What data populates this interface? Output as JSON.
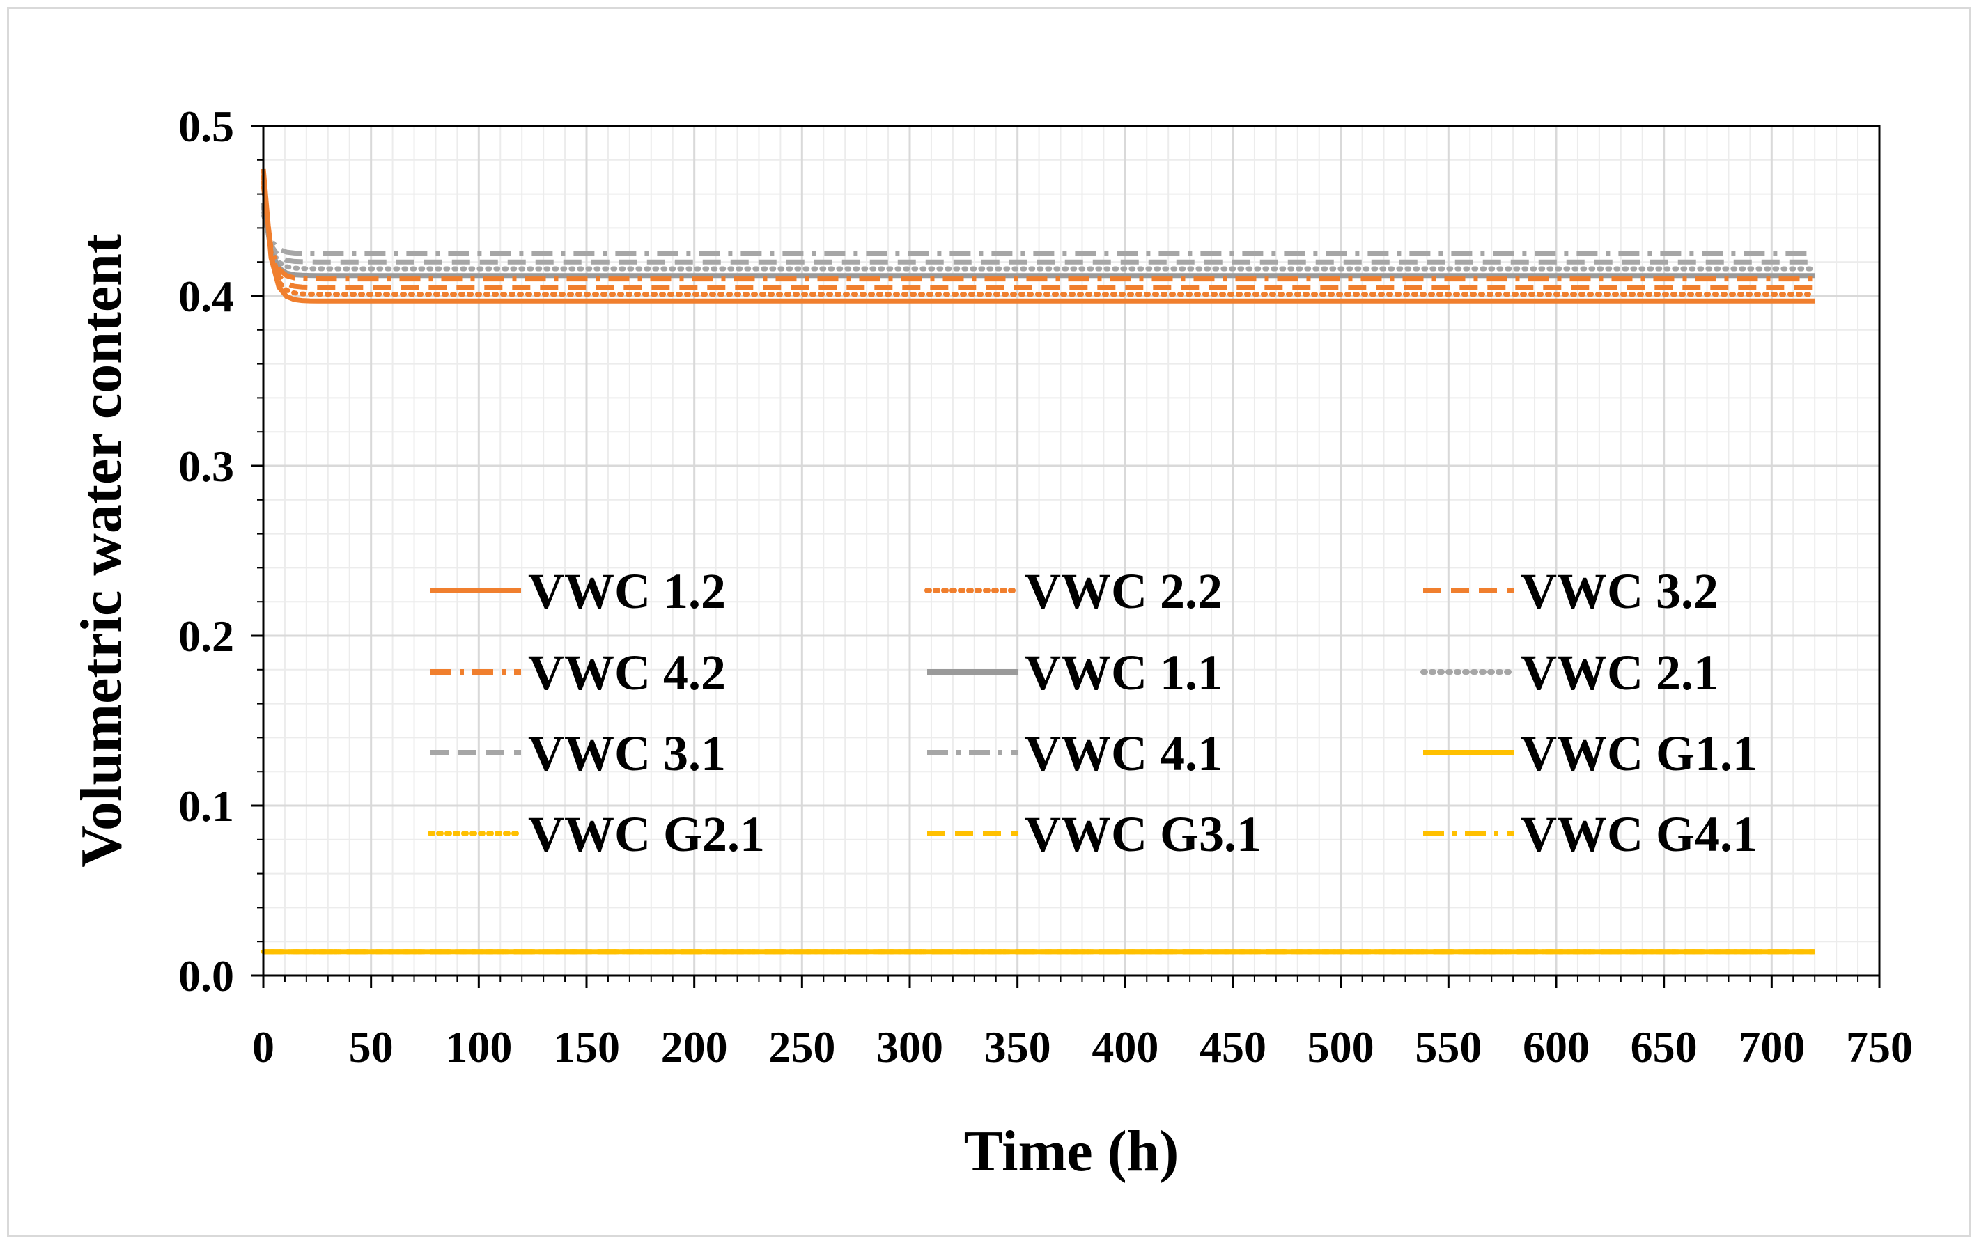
{
  "chart_data": {
    "type": "line",
    "title": "",
    "xlabel": "Time (h)",
    "ylabel": "Volumetric water content",
    "xlim": [
      0,
      750
    ],
    "ylim": [
      0.0,
      0.5
    ],
    "xticks": [
      "0",
      "50",
      "100",
      "150",
      "200",
      "250",
      "300",
      "350",
      "400",
      "450",
      "500",
      "550",
      "600",
      "650",
      "700",
      "750"
    ],
    "yticks": [
      "0.0",
      "0.1",
      "0.2",
      "0.3",
      "0.4",
      "0.5"
    ],
    "grid": true,
    "minor_grid": true,
    "legend_position": "center",
    "colors": {
      "orange": "#f07f2e",
      "gray": "#a6a6a6",
      "gray_dark": "#9a9a9a",
      "gold": "#ffc000"
    },
    "series": [
      {
        "name": "VWC 1.2",
        "color": "#f07f2e",
        "dash": "solid",
        "start": 0.475,
        "end": 0.397,
        "x_end": 720
      },
      {
        "name": "VWC 2.2",
        "color": "#f07f2e",
        "dash": "dot",
        "start": 0.47,
        "end": 0.401,
        "x_end": 720
      },
      {
        "name": "VWC 3.2",
        "color": "#f07f2e",
        "dash": "dash",
        "start": 0.468,
        "end": 0.405,
        "x_end": 720
      },
      {
        "name": "VWC 4.2",
        "color": "#f07f2e",
        "dash": "dashdot",
        "start": 0.465,
        "end": 0.41,
        "x_end": 720
      },
      {
        "name": "VWC 1.1",
        "color": "#9a9a9a",
        "dash": "solid",
        "start": 0.455,
        "end": 0.412,
        "x_end": 720
      },
      {
        "name": "VWC 2.1",
        "color": "#a6a6a6",
        "dash": "dot",
        "start": 0.452,
        "end": 0.416,
        "x_end": 720
      },
      {
        "name": "VWC 3.1",
        "color": "#a6a6a6",
        "dash": "dash",
        "start": 0.45,
        "end": 0.42,
        "x_end": 720
      },
      {
        "name": "VWC 4.1",
        "color": "#a6a6a6",
        "dash": "dashdot",
        "start": 0.448,
        "end": 0.425,
        "x_end": 720
      },
      {
        "name": "VWC G1.1",
        "color": "#ffc000",
        "dash": "solid",
        "start": 0.014,
        "end": 0.014,
        "x_end": 720
      },
      {
        "name": "VWC G2.1",
        "color": "#ffc000",
        "dash": "dot",
        "start": 0.014,
        "end": 0.014,
        "x_end": 720
      },
      {
        "name": "VWC G3.1",
        "color": "#ffc000",
        "dash": "dash",
        "start": 0.014,
        "end": 0.014,
        "x_end": 720
      },
      {
        "name": "VWC G4.1",
        "color": "#ffc000",
        "dash": "dashdot",
        "start": 0.014,
        "end": 0.014,
        "x_end": 720
      }
    ]
  }
}
